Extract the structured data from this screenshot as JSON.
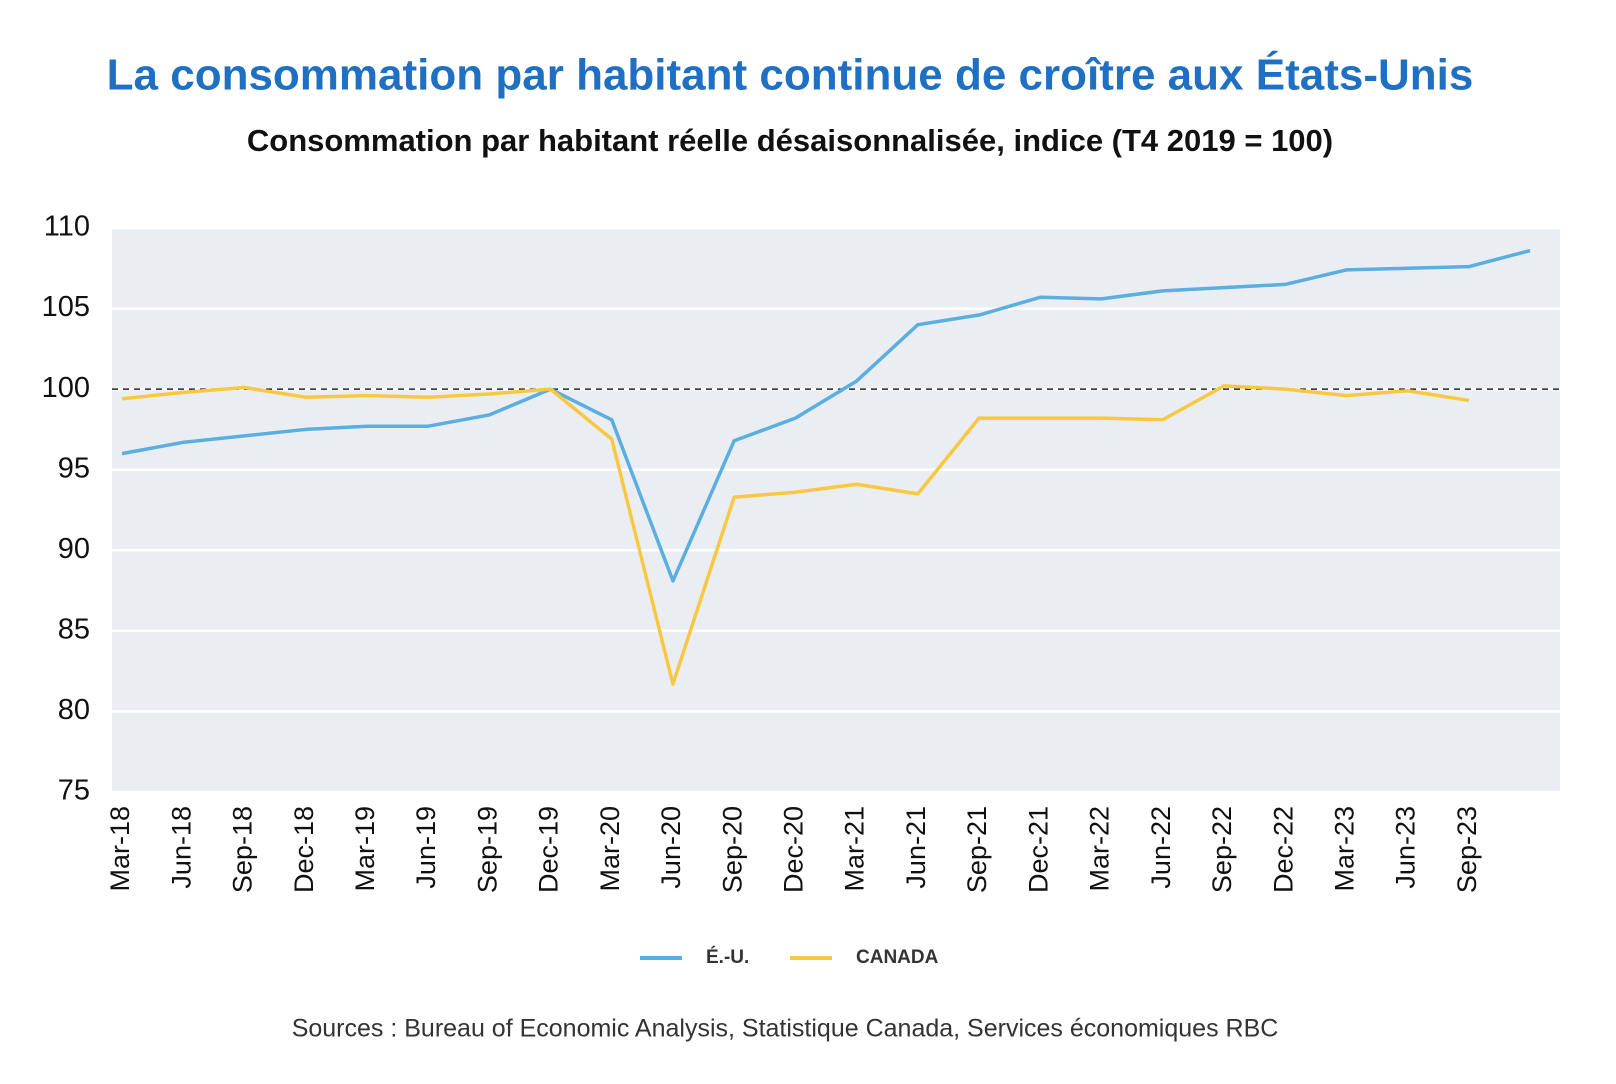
{
  "chart_data": {
    "type": "line",
    "title": "La consommation par habitant continue de croître aux États-Unis",
    "subtitle": "Consommation par habitant réelle désaisonnalisée, indice (T4 2019 = 100)",
    "source": "Sources : Bureau of Economic Analysis, Statistique Canada, Services économiques RBC",
    "categories": [
      "Mar-18",
      "Jun-18",
      "Sep-18",
      "Dec-18",
      "Mar-19",
      "Jun-19",
      "Sep-19",
      "Dec-19",
      "Mar-20",
      "Jun-20",
      "Sep-20",
      "Dec-20",
      "Mar-21",
      "Jun-21",
      "Sep-21",
      "Dec-21",
      "Mar-22",
      "Jun-22",
      "Sep-22",
      "Dec-22",
      "Mar-23",
      "Jun-23",
      "Sep-23",
      null
    ],
    "series": [
      {
        "name": "É.-U.",
        "color": "#5aaee0",
        "values": [
          96.0,
          96.7,
          97.1,
          97.5,
          97.7,
          97.7,
          98.4,
          100.0,
          98.1,
          88.1,
          96.8,
          98.2,
          100.5,
          104.0,
          104.6,
          105.7,
          105.6,
          106.1,
          106.3,
          106.5,
          107.4,
          107.5,
          107.6,
          108.6
        ]
      },
      {
        "name": "CANADA",
        "color": "#f8c842",
        "values": [
          99.4,
          99.8,
          100.1,
          99.5,
          99.6,
          99.5,
          99.7,
          100.0,
          96.9,
          81.7,
          93.3,
          93.6,
          94.1,
          93.5,
          98.2,
          98.2,
          98.2,
          98.1,
          100.2,
          100.0,
          99.6,
          99.9,
          99.3,
          null
        ]
      }
    ],
    "reference_line": 100,
    "ylim": [
      75,
      110
    ],
    "yticks": [
      75,
      80,
      85,
      90,
      95,
      100,
      105,
      110
    ],
    "grid": true
  }
}
